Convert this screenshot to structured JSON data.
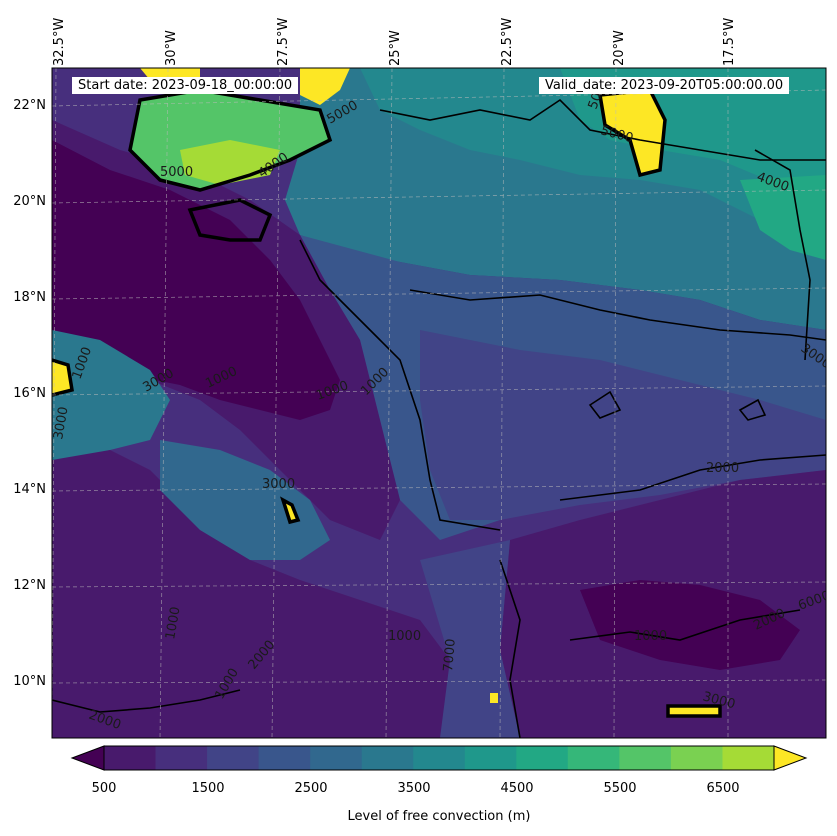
{
  "map": {
    "start_date": "Start date: 2023-09-18_00:00:00",
    "valid_date": "Valid_date: 2023-09-20T05:00:00.00",
    "lon_labels": [
      "32.5°W",
      "30°W",
      "27.5°W",
      "25°W",
      "22.5°W",
      "20°W",
      "17.5°W"
    ],
    "lat_labels": [
      "22°N",
      "20°N",
      "18°N",
      "16°N",
      "14°N",
      "12°N",
      "10°N"
    ],
    "contour_labels": [
      "5000",
      "5000",
      "5000",
      "4000",
      "4000",
      "3000",
      "3000",
      "3000",
      "3000",
      "1000",
      "1000",
      "1000",
      "1000",
      "1000",
      "1000",
      "1000",
      "1000",
      "2000",
      "2000",
      "2000",
      "2000",
      "3000",
      "7000",
      "6000",
      "5000"
    ]
  },
  "colorbar": {
    "label": "Level of free convection (m)",
    "ticks": [
      "500",
      "1500",
      "2500",
      "3500",
      "4500",
      "5500",
      "6500"
    ],
    "colors": [
      "#440154",
      "#481a6c",
      "#472f7d",
      "#414487",
      "#39568c",
      "#31688e",
      "#2a788e",
      "#23888e",
      "#1f988b",
      "#22a884",
      "#35b779",
      "#54c568",
      "#7ad151",
      "#a5db36",
      "#d2e21b",
      "#fde725"
    ]
  }
}
